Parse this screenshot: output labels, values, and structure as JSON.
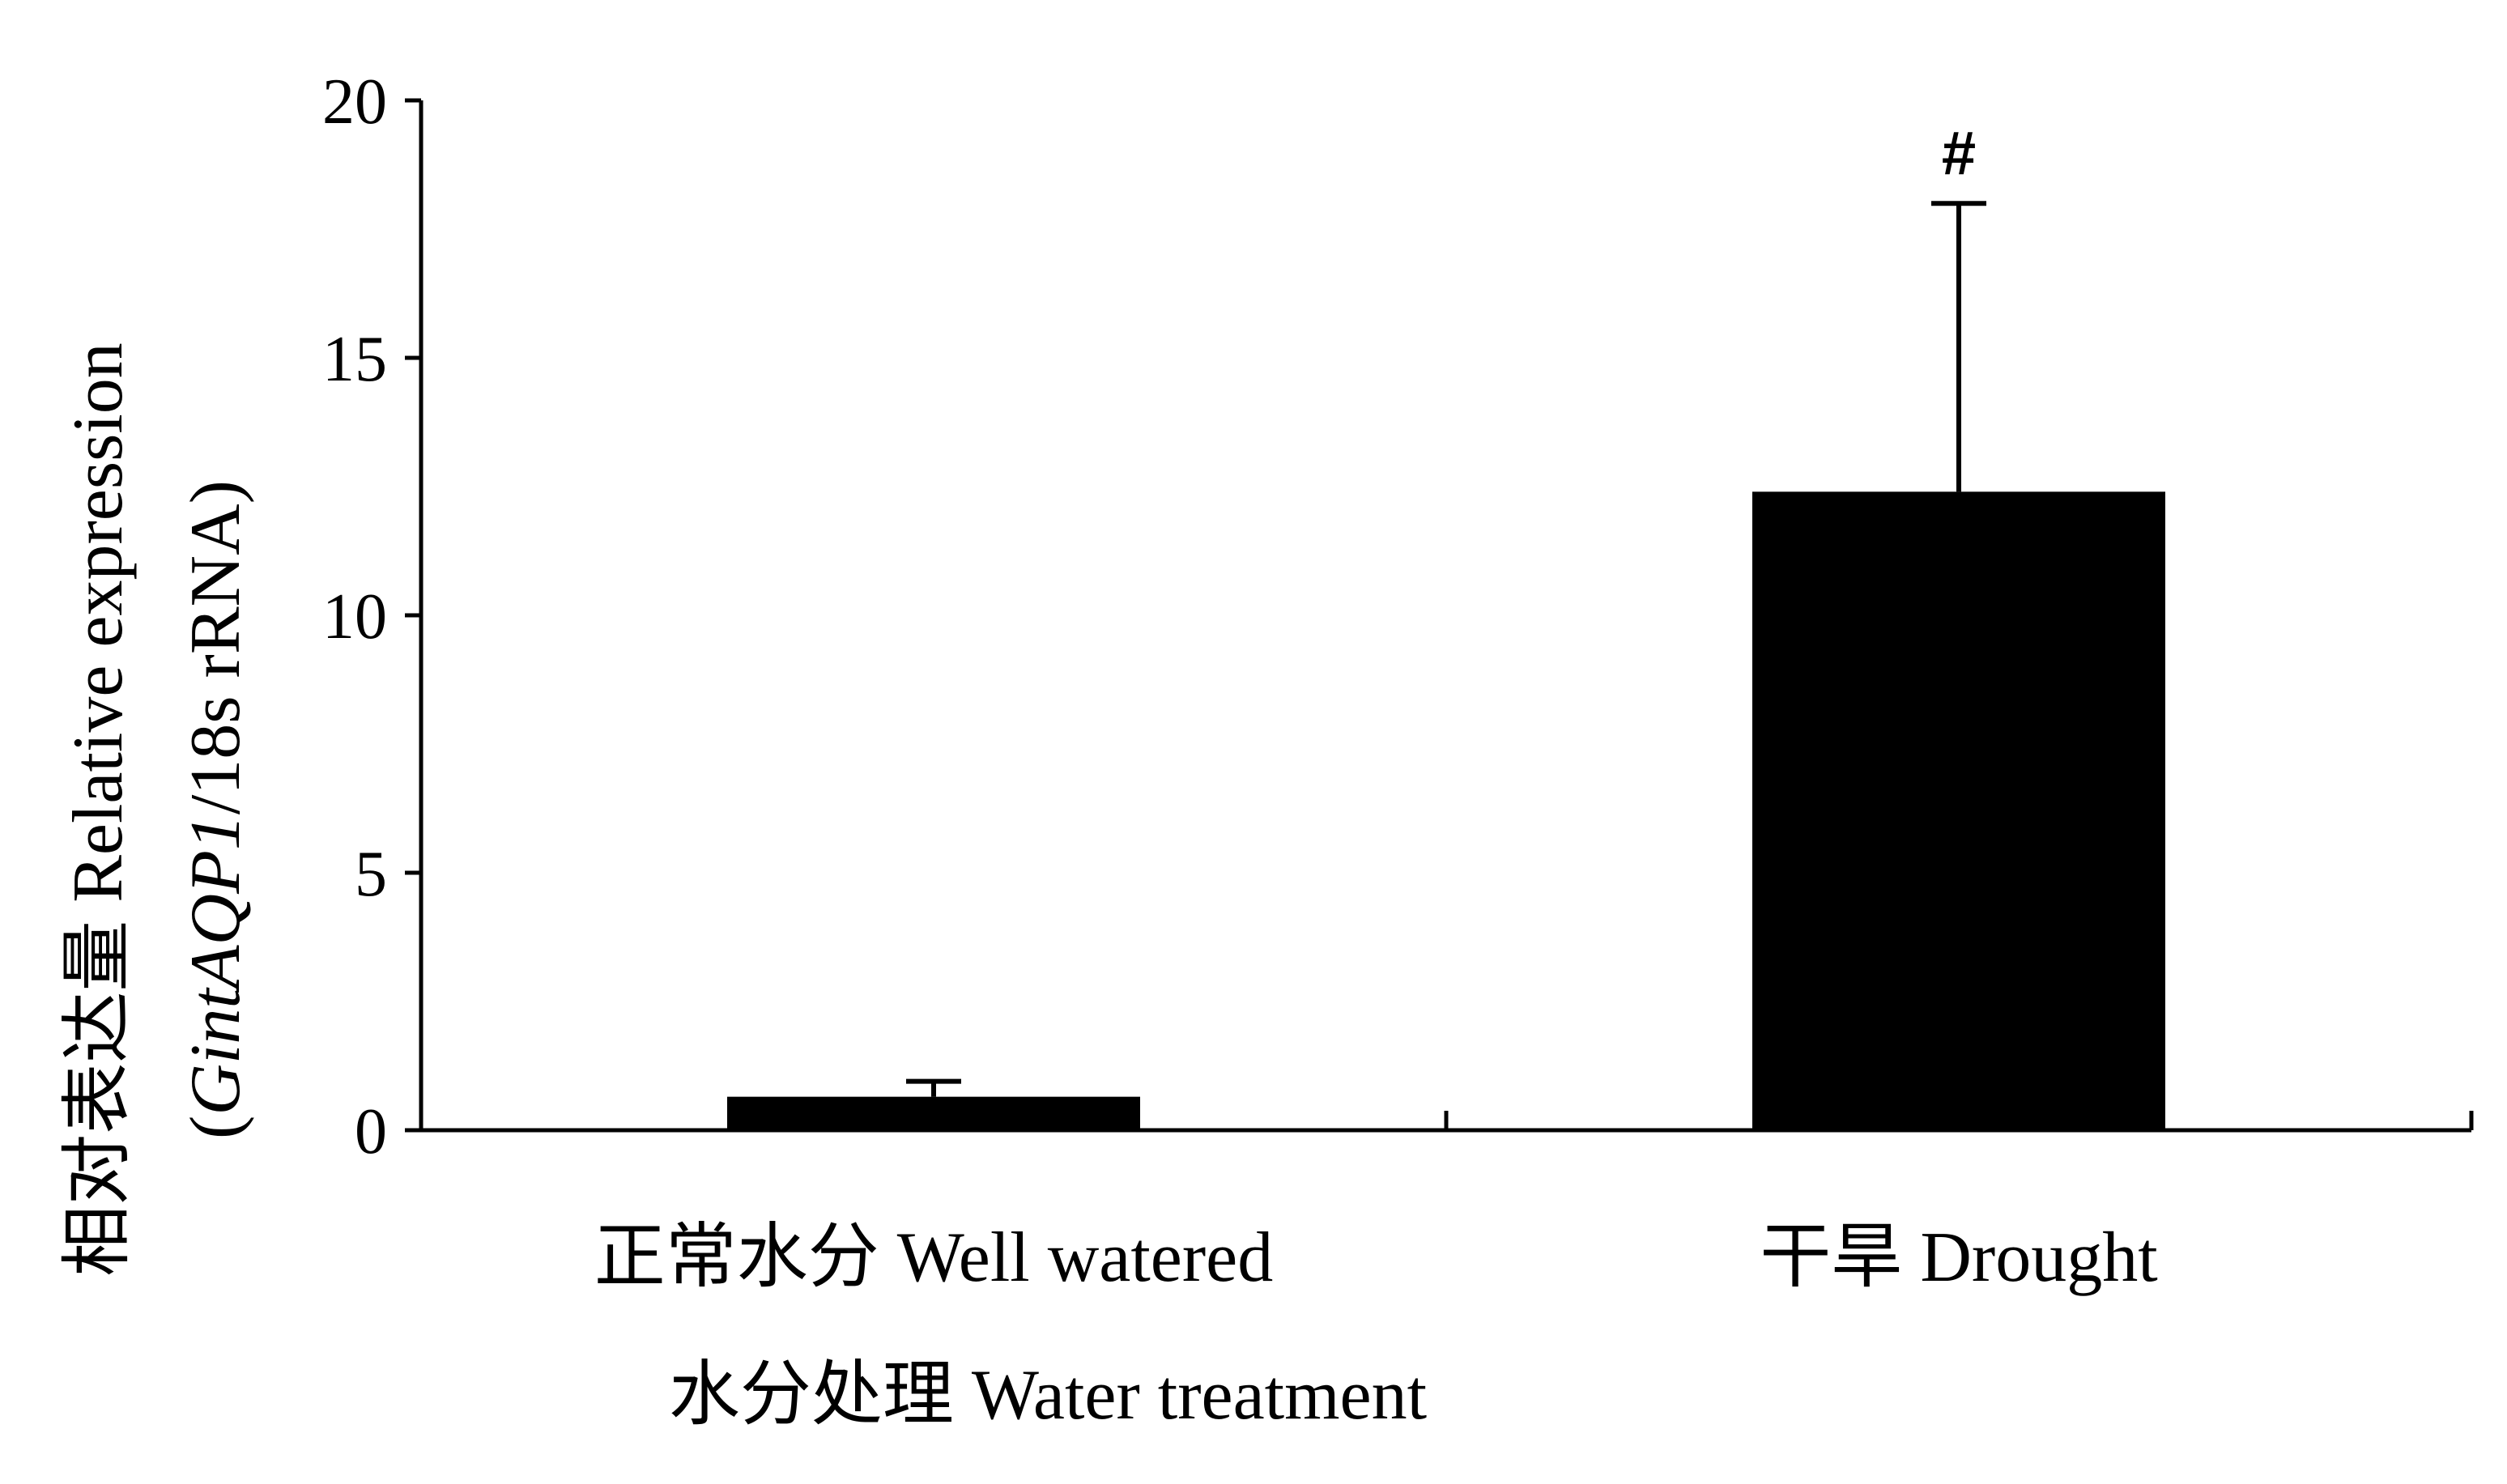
{
  "chart_data": {
    "type": "bar",
    "categories": [
      "正常水分 Well watered",
      "干旱 Drought"
    ],
    "values": [
      0.65,
      12.4
    ],
    "error_bars": [
      0.3,
      5.6
    ],
    "annotations": [
      "",
      "#"
    ],
    "xlabel": "水分处理 Water treatment",
    "ylabel": {
      "line1": "相对表达量 Relative expression",
      "line2_prefix": "(",
      "line2_gene": "GintAQP1",
      "line2_suffix": "/18s rRNA)"
    },
    "yticks": [
      0,
      5,
      10,
      15,
      20
    ],
    "ylim": [
      0,
      20
    ],
    "grid": false,
    "legend": "none",
    "bar_color": "#000000"
  }
}
